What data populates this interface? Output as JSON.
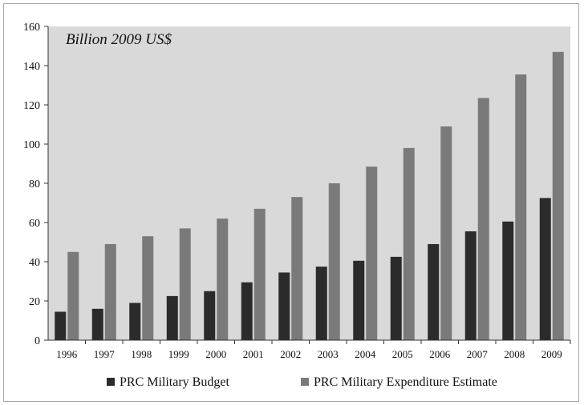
{
  "chart_data": {
    "type": "bar",
    "title": "Billion 2009 US$",
    "categories": [
      "1996",
      "1997",
      "1998",
      "1999",
      "2000",
      "2001",
      "2002",
      "2003",
      "2004",
      "2005",
      "2006",
      "2007",
      "2008",
      "2009"
    ],
    "series": [
      {
        "name": "PRC Military Budget",
        "color": "#2b2b2b",
        "values": [
          14.5,
          16,
          19,
          22.5,
          25,
          29.5,
          34.5,
          37.5,
          40.5,
          42.5,
          49,
          55.5,
          60.5,
          72.5
        ]
      },
      {
        "name": "PRC Military Expenditure Estimate",
        "color": "#7a7a7a",
        "values": [
          45,
          49,
          53,
          57,
          62,
          67,
          73,
          80,
          88.5,
          98,
          109,
          123.5,
          135.5,
          147
        ]
      }
    ],
    "ylim": [
      0,
      160
    ],
    "yticks": [
      0,
      20,
      40,
      60,
      80,
      100,
      120,
      140,
      160
    ],
    "grid": false,
    "plot_background": "#d9d9d9",
    "legend_position": "bottom"
  }
}
